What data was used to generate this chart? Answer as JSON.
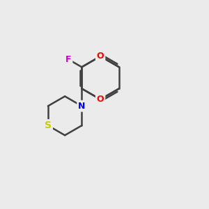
{
  "bg_color": "#ebebeb",
  "bond_color": "#404040",
  "atom_colors": {
    "O": "#ff0000",
    "N": "#0000ff",
    "S": "#cccc00",
    "F": "#cc00cc"
  },
  "bond_width": 1.8,
  "figsize": [
    3.0,
    3.0
  ],
  "dpi": 100
}
